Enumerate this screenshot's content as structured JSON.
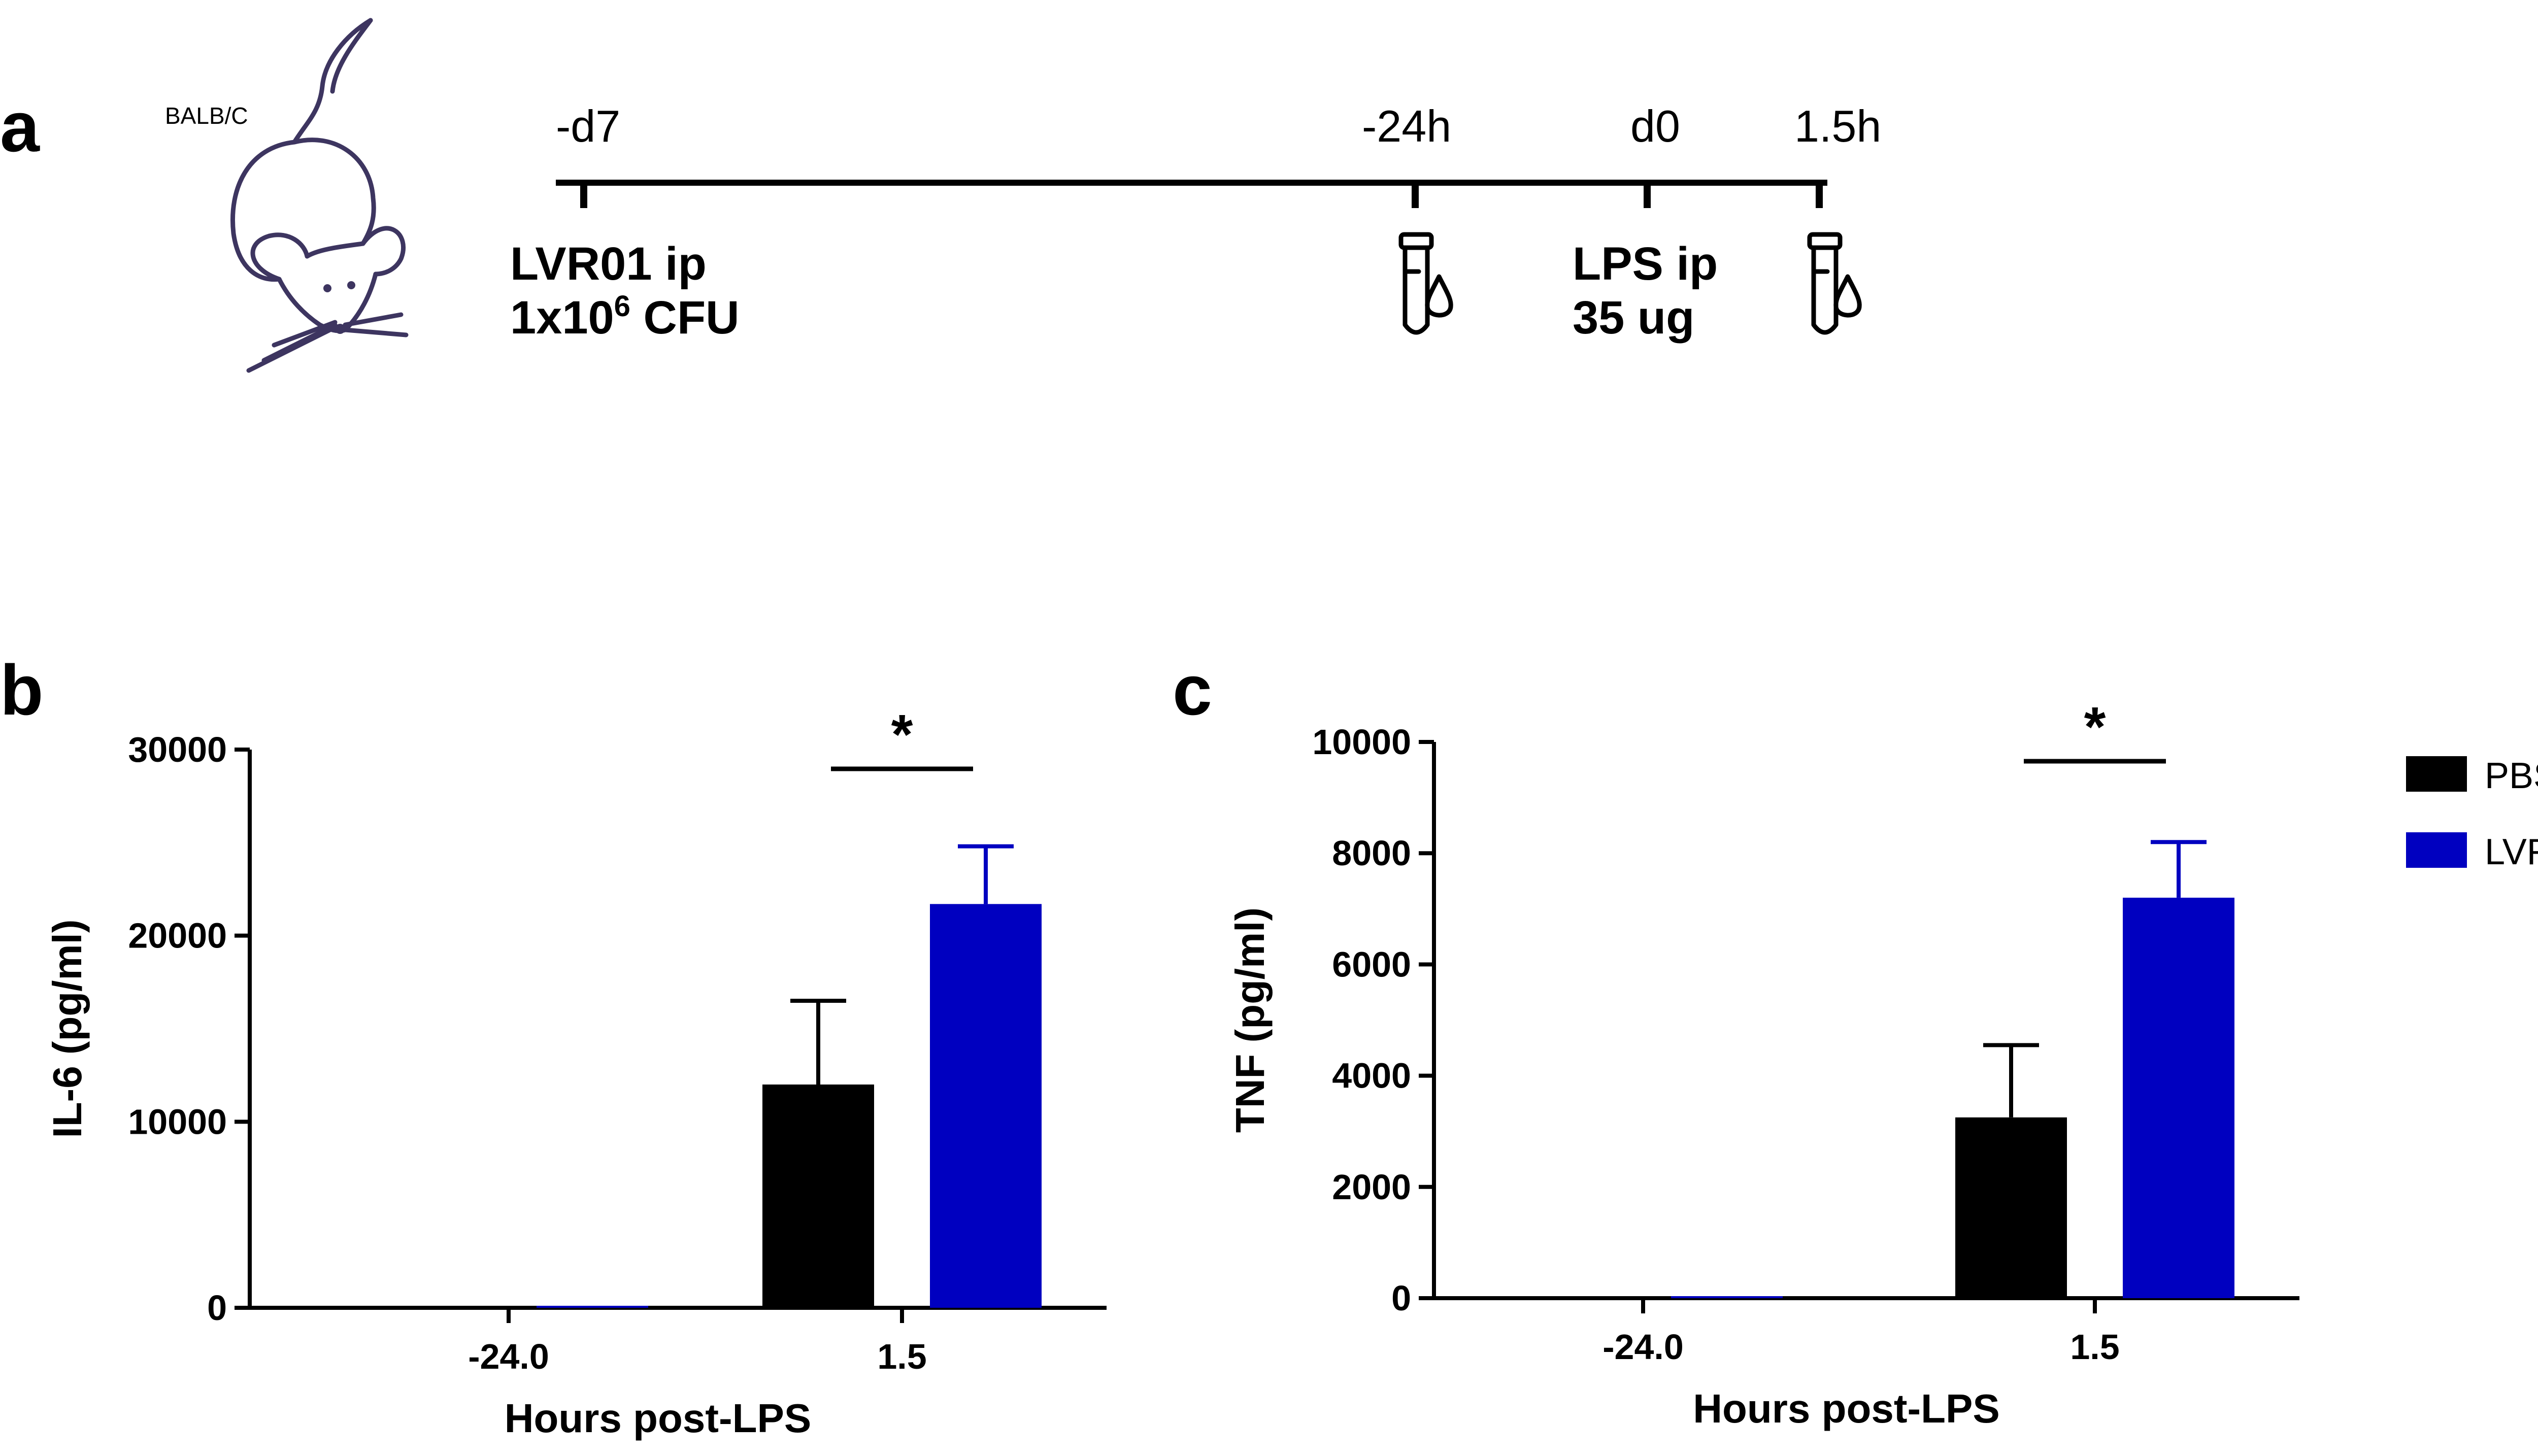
{
  "panel_a": {
    "letter": "a",
    "strain": "BALB/C",
    "timepoints": [
      "-d7",
      "-24h",
      "d0",
      "1.5h"
    ],
    "treatment1": {
      "line1": "LVR01 ip",
      "line2_pre": "1x10",
      "line2_sup": "6",
      "line2_post": " CFU"
    },
    "treatment2": {
      "line1": "LPS ip",
      "line2": "35 ug"
    },
    "icons": [
      "mouse-drawing",
      "blood-tube-icon",
      "blood-tube-icon"
    ]
  },
  "panel_b_letter": "b",
  "panel_c_letter": "c",
  "legend": [
    {
      "name": "PBS",
      "color": "#000000"
    },
    {
      "name": "LVR",
      "color": "#0000c0"
    }
  ],
  "chart_data": [
    {
      "type": "bar",
      "panel": "b",
      "categories": [
        "-24.0",
        "1.5"
      ],
      "series": [
        {
          "name": "PBS",
          "values": [
            0,
            12000
          ],
          "error": [
            0,
            4500
          ]
        },
        {
          "name": "LVR",
          "values": [
            0,
            21700
          ],
          "error": [
            0,
            3100
          ]
        }
      ],
      "xlabel": "Hours post-LPS",
      "ylabel": "IL-6 (pg/ml)",
      "ylim": [
        0,
        30000
      ],
      "yticks": [
        0,
        10000,
        20000,
        30000
      ],
      "significance": {
        "category": "1.5",
        "label": "*"
      },
      "grid": false
    },
    {
      "type": "bar",
      "panel": "c",
      "categories": [
        "-24.0",
        "1.5"
      ],
      "series": [
        {
          "name": "PBS",
          "values": [
            0,
            3250
          ],
          "error": [
            0,
            1300
          ]
        },
        {
          "name": "LVR",
          "values": [
            0,
            7200
          ],
          "error": [
            0,
            1000
          ]
        }
      ],
      "xlabel": "Hours post-LPS",
      "ylabel": "TNF (pg/ml)",
      "ylim": [
        0,
        10000
      ],
      "yticks": [
        0,
        2000,
        4000,
        6000,
        8000,
        10000
      ],
      "significance": {
        "category": "1.5",
        "label": "*"
      },
      "grid": false
    }
  ]
}
